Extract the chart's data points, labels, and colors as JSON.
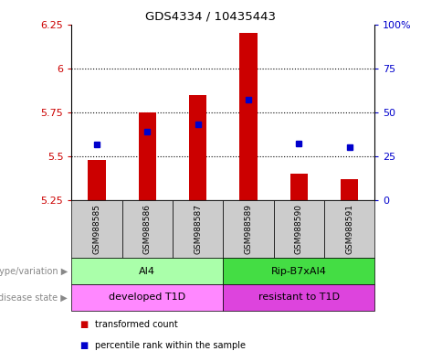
{
  "title": "GDS4334 / 10435443",
  "samples": [
    "GSM988585",
    "GSM988586",
    "GSM988587",
    "GSM988589",
    "GSM988590",
    "GSM988591"
  ],
  "bar_values": [
    5.48,
    5.75,
    5.85,
    6.2,
    5.4,
    5.37
  ],
  "bar_bottom": 5.25,
  "percentile_values": [
    5.565,
    5.638,
    5.682,
    5.82,
    5.572,
    5.553
  ],
  "ylim_min": 5.25,
  "ylim_max": 6.25,
  "y_ticks": [
    5.25,
    5.5,
    5.75,
    6.0,
    6.25
  ],
  "y_tick_labels": [
    "5.25",
    "5.5",
    "5.75",
    "6",
    "6.25"
  ],
  "y2_ticks": [
    0,
    25,
    50,
    75,
    100
  ],
  "y2_tick_labels": [
    "0",
    "25",
    "50",
    "75",
    "100%"
  ],
  "dotted_lines": [
    5.5,
    5.75,
    6.0
  ],
  "bar_color": "#cc0000",
  "percentile_color": "#0000cc",
  "bar_width": 0.35,
  "genotype_groups": [
    {
      "label": "AI4",
      "start": 0,
      "end": 3,
      "color": "#aaffaa"
    },
    {
      "label": "Rip-B7xAI4",
      "start": 3,
      "end": 6,
      "color": "#44dd44"
    }
  ],
  "disease_groups": [
    {
      "label": "developed T1D",
      "start": 0,
      "end": 3,
      "color": "#ff88ff"
    },
    {
      "label": "resistant to T1D",
      "start": 3,
      "end": 6,
      "color": "#dd44dd"
    }
  ],
  "genotype_label": "genotype/variation",
  "disease_label": "disease state",
  "legend_items": [
    {
      "label": "transformed count",
      "color": "#cc0000"
    },
    {
      "label": "percentile rank within the sample",
      "color": "#0000cc"
    }
  ],
  "tick_bg_color": "#cccccc",
  "marker_size": 5
}
